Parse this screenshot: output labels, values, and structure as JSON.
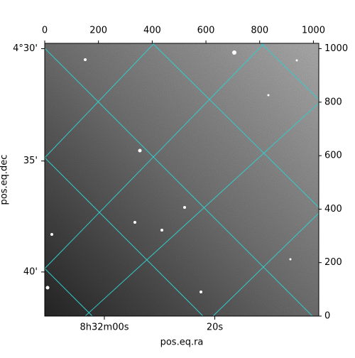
{
  "chart_data": {
    "type": "image",
    "xlabel": "pos.eq.ra",
    "ylabel": "pos.eq.dec",
    "xlim": [
      0,
      1020
    ],
    "ylim": [
      0,
      1020
    ],
    "xticks": [
      0,
      200,
      400,
      600,
      800,
      1000
    ],
    "yticks": [
      0,
      200,
      400,
      600,
      800,
      1000
    ],
    "ra_ticks": [
      {
        "value": 222,
        "label": "8h32m00s"
      },
      {
        "value": 633,
        "label": "20s"
      }
    ],
    "dec_ticks": [
      {
        "value": 1000,
        "label": "4°30'"
      },
      {
        "value": 580,
        "label": "35'"
      },
      {
        "value": 165,
        "label": "40'"
      }
    ],
    "grid_color": "#33cccc"
  }
}
